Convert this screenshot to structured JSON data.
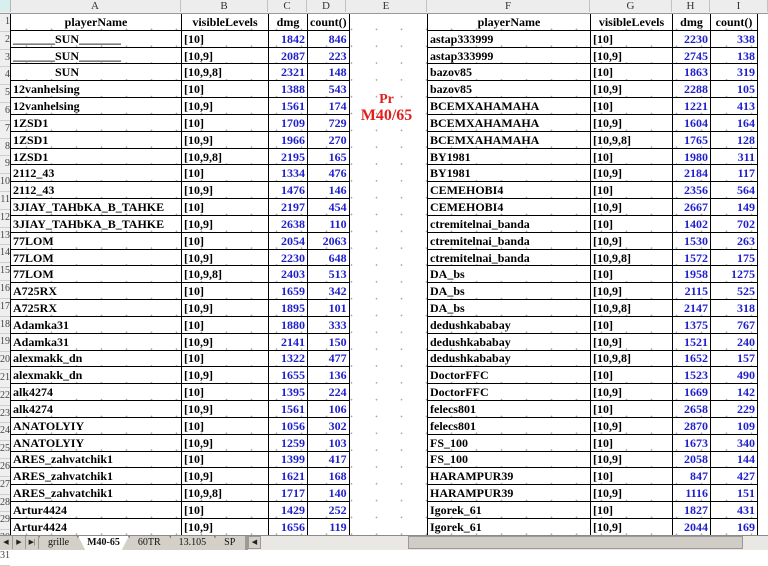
{
  "colors": {
    "number_blue": "#1f1fcc",
    "label_red": "#e01f1f"
  },
  "column_letters": [
    "A",
    "B",
    "C",
    "D",
    "E",
    "F",
    "G",
    "H",
    "I"
  ],
  "row_numbers": [
    "1",
    "2",
    "3",
    "4",
    "5",
    "6",
    "7",
    "8",
    "9",
    "10",
    "11",
    "12",
    "13",
    "14",
    "15",
    "16",
    "17",
    "18",
    "19",
    "20",
    "21",
    "22",
    "23",
    "24",
    "25",
    "26",
    "27",
    "28",
    "29",
    "30",
    "31"
  ],
  "left_table": {
    "headers": [
      "playerName",
      "visibleLevels",
      "dmg",
      "count()"
    ],
    "rows": [
      [
        "_______SUN_______",
        "[10]",
        "1842",
        "846"
      ],
      [
        "_______SUN_______",
        "[10,9]",
        "2087",
        "223"
      ],
      [
        "              SUN",
        "[10,9,8]",
        "2321",
        "148"
      ],
      [
        "12vanhelsing",
        "[10]",
        "1388",
        "543"
      ],
      [
        "12vanhelsing",
        "[10,9]",
        "1561",
        "174"
      ],
      [
        "1ZSD1",
        "[10]",
        "1709",
        "729"
      ],
      [
        "1ZSD1",
        "[10,9]",
        "1966",
        "270"
      ],
      [
        "1ZSD1",
        "[10,9,8]",
        "2195",
        "165"
      ],
      [
        "2112_43",
        "[10]",
        "1334",
        "476"
      ],
      [
        "2112_43",
        "[10,9]",
        "1476",
        "146"
      ],
      [
        "3JIAY_TAHbKA_B_TAHKE",
        "[10]",
        "2197",
        "454"
      ],
      [
        "3JIAY_TAHbKA_B_TAHKE",
        "[10,9]",
        "2638",
        "110"
      ],
      [
        "77LOM",
        "[10]",
        "2054",
        "2063"
      ],
      [
        "77LOM",
        "[10,9]",
        "2230",
        "648"
      ],
      [
        "77LOM",
        "[10,9,8]",
        "2403",
        "513"
      ],
      [
        "A725RX",
        "[10]",
        "1659",
        "342"
      ],
      [
        "A725RX",
        "[10,9]",
        "1895",
        "101"
      ],
      [
        "Adamka31",
        "[10]",
        "1880",
        "333"
      ],
      [
        "Adamka31",
        "[10,9]",
        "2141",
        "150"
      ],
      [
        "alexmakk_dn",
        "[10]",
        "1322",
        "477"
      ],
      [
        "alexmakk_dn",
        "[10,9]",
        "1655",
        "136"
      ],
      [
        "alk4274",
        "[10]",
        "1395",
        "224"
      ],
      [
        "alk4274",
        "[10,9]",
        "1561",
        "106"
      ],
      [
        "ANATOLYIY",
        "[10]",
        "1056",
        "302"
      ],
      [
        "ANATOLYIY",
        "[10,9]",
        "1259",
        "103"
      ],
      [
        "ARES_zahvatchik1",
        "[10]",
        "1399",
        "417"
      ],
      [
        "ARES_zahvatchik1",
        "[10,9]",
        "1621",
        "168"
      ],
      [
        "ARES_zahvatchik1",
        "[10,9,8]",
        "1717",
        "140"
      ],
      [
        "Artur4424",
        "[10]",
        "1429",
        "252"
      ],
      [
        "Artur4424",
        "[10,9]",
        "1656",
        "119"
      ]
    ]
  },
  "right_table": {
    "headers": [
      "playerName",
      "visibleLevels",
      "dmg",
      "count()"
    ],
    "rows": [
      [
        "astap333999",
        "[10]",
        "2230",
        "338"
      ],
      [
        "astap333999",
        "[10,9]",
        "2745",
        "138"
      ],
      [
        "bazov85",
        "[10]",
        "1863",
        "319"
      ],
      [
        "bazov85",
        "[10,9]",
        "2288",
        "105"
      ],
      [
        "BCEMXAHAMAHA",
        "[10]",
        "1221",
        "413"
      ],
      [
        "BCEMXAHAMAHA",
        "[10,9]",
        "1604",
        "164"
      ],
      [
        "BCEMXAHAMAHA",
        "[10,9,8]",
        "1765",
        "128"
      ],
      [
        "BY1981",
        "[10]",
        "1980",
        "311"
      ],
      [
        "BY1981",
        "[10,9]",
        "2184",
        "117"
      ],
      [
        "CEMEHOBI4",
        "[10]",
        "2356",
        "564"
      ],
      [
        "CEMEHOBI4",
        "[10,9]",
        "2667",
        "149"
      ],
      [
        "ctremitelnai_banda",
        "[10]",
        "1402",
        "702"
      ],
      [
        "ctremitelnai_banda",
        "[10,9]",
        "1530",
        "263"
      ],
      [
        "ctremitelnai_banda",
        "[10,9,8]",
        "1572",
        "175"
      ],
      [
        "DA_bs",
        "[10]",
        "1958",
        "1275"
      ],
      [
        "DA_bs",
        "[10,9]",
        "2115",
        "525"
      ],
      [
        "DA_bs",
        "[10,9,8]",
        "2147",
        "318"
      ],
      [
        "dedushkababay",
        "[10]",
        "1375",
        "767"
      ],
      [
        "dedushkababay",
        "[10,9]",
        "1521",
        "240"
      ],
      [
        "dedushkababay",
        "[10,9,8]",
        "1652",
        "157"
      ],
      [
        "DoctorFFC",
        "[10]",
        "1523",
        "490"
      ],
      [
        "DoctorFFC",
        "[10,9]",
        "1669",
        "142"
      ],
      [
        "felecs801",
        "[10]",
        "2658",
        "229"
      ],
      [
        "felecs801",
        "[10,9]",
        "2870",
        "109"
      ],
      [
        "FS_100",
        "[10]",
        "1673",
        "340"
      ],
      [
        "FS_100",
        "[10,9]",
        "2058",
        "144"
      ],
      [
        "HARAMPUR39",
        "[10]",
        "847",
        "427"
      ],
      [
        "HARAMPUR39",
        "[10,9]",
        "1116",
        "151"
      ],
      [
        "Igorek_61",
        "[10]",
        "1827",
        "431"
      ],
      [
        "Igorek_61",
        "[10,9]",
        "2044",
        "169"
      ]
    ]
  },
  "center_label": {
    "line1": "Pr",
    "line2": "M40/65"
  },
  "tabbar": {
    "nav_icons": [
      "◀",
      "▶",
      "▶|"
    ],
    "tabs": [
      {
        "label": "grille",
        "active": false
      },
      {
        "label": "M40-65",
        "active": true
      },
      {
        "label": "60TR",
        "active": false
      },
      {
        "label": "13.105",
        "active": false
      },
      {
        "label": "SP",
        "active": false
      }
    ],
    "scroll_left_icon": "◀"
  }
}
